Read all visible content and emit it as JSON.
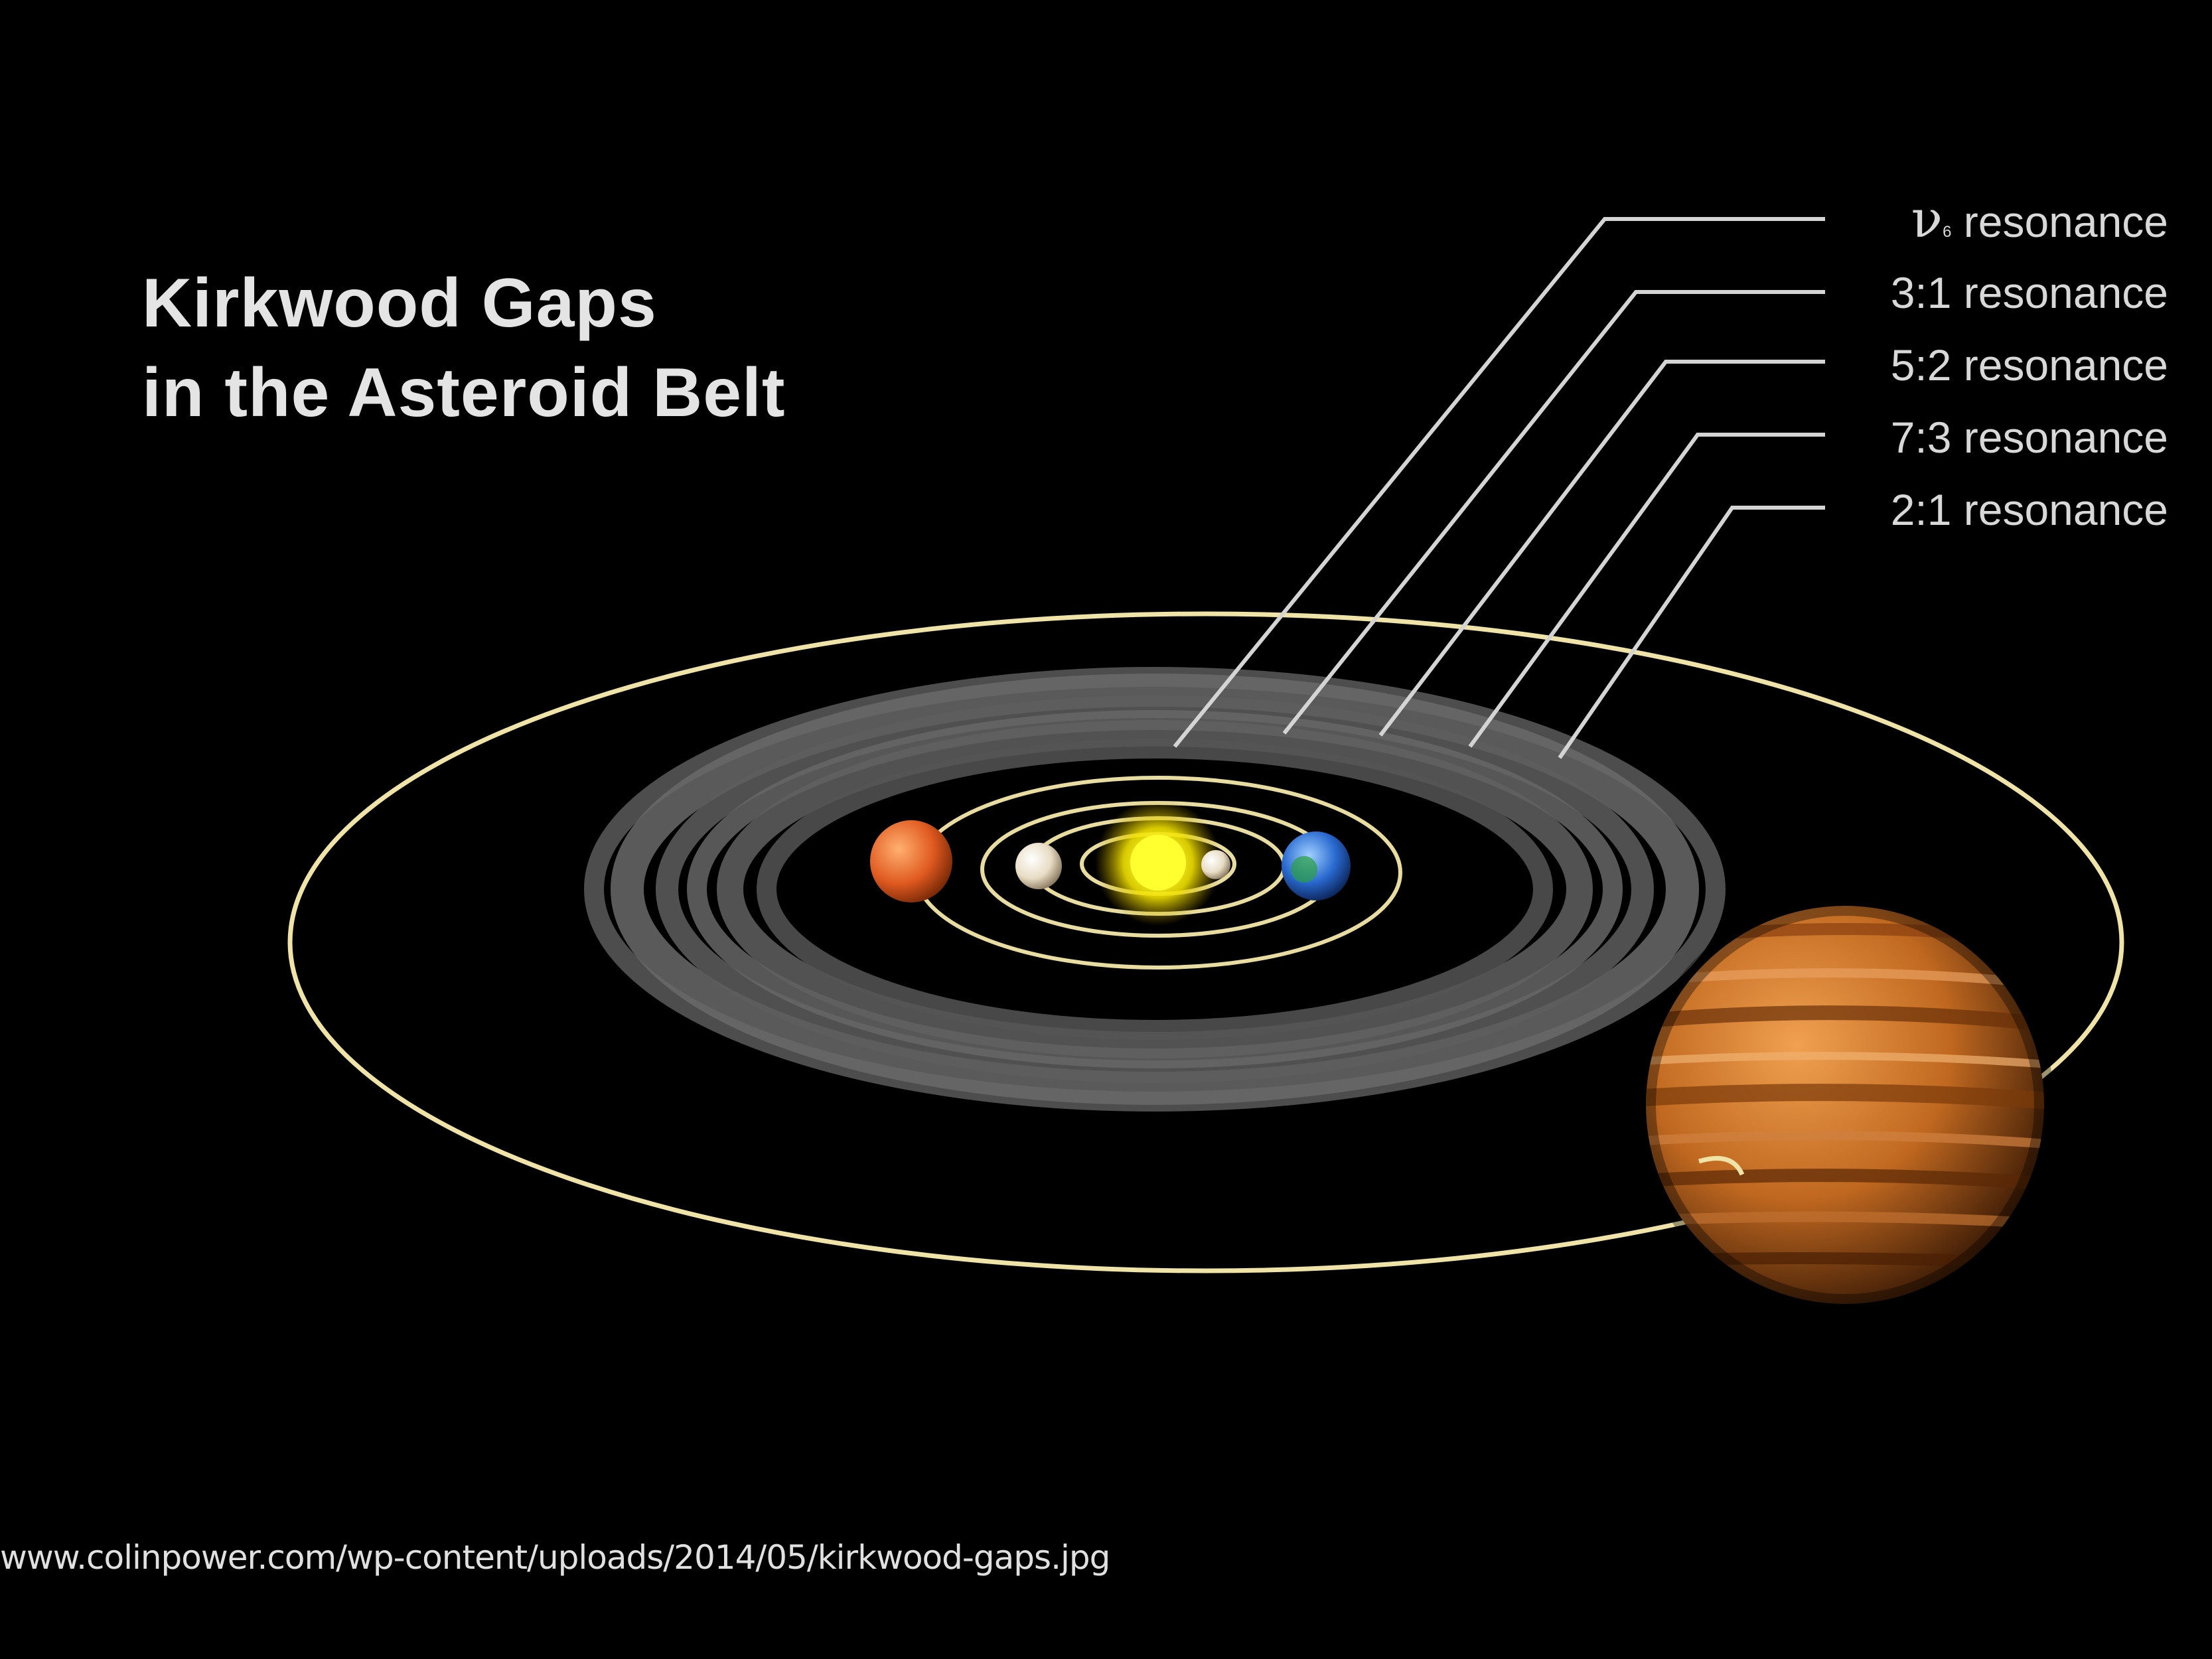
{
  "title": {
    "line1": "Kirkwood Gaps",
    "line2": "in the Asteroid Belt"
  },
  "resonances": [
    {
      "symbol": "ν",
      "subscript": "6",
      "text": " resonance"
    },
    {
      "text": "3:1 resonance"
    },
    {
      "text": "5:2 resonance"
    },
    {
      "text": "7:3 resonance"
    },
    {
      "text": "2:1 resonance"
    }
  ],
  "source_url": "www.colinpower.com/wp-content/uploads/2014/05/kirkwood-gaps.jpg",
  "colors": {
    "background": "#000000",
    "orbit": "#e8dca0",
    "leader_line": "#d0d0d0",
    "sun": "#ffff20",
    "belt": "#6a6a6a",
    "jupiter": "#c8702a",
    "mars": "#e0602a",
    "earth": "#2a70d8"
  }
}
